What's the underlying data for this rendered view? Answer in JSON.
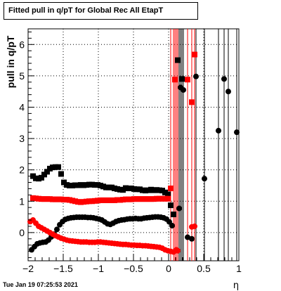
{
  "title": "Fitted pull in q/pT for Global Rec All EtapT",
  "timestamp": "Tue Jan 19 07:25:53 2021",
  "chart_data": {
    "type": "scatter",
    "xlabel": "η",
    "ylabel": "pull in q/pT",
    "xlim": [
      -2,
      1
    ],
    "ylim": [
      -0.9,
      6.5
    ],
    "grid": true,
    "x_ticks": [
      {
        "value": -2,
        "label": "−2"
      },
      {
        "value": -1.5,
        "label": "−1.5"
      },
      {
        "value": -1,
        "label": "−1"
      },
      {
        "value": -0.5,
        "label": "−0.5"
      },
      {
        "value": 0,
        "label": "0"
      },
      {
        "value": 0.5,
        "label": "0.5"
      },
      {
        "value": 1,
        "label": "1"
      }
    ],
    "y_ticks": [
      {
        "value": 0,
        "label": "0"
      },
      {
        "value": 1,
        "label": "1"
      },
      {
        "value": 2,
        "label": "2"
      },
      {
        "value": 3,
        "label": "3"
      },
      {
        "value": 4,
        "label": "4"
      },
      {
        "value": 5,
        "label": "5"
      },
      {
        "value": 6,
        "label": "6"
      }
    ],
    "series": [
      {
        "color": "#000000",
        "marker": "square",
        "points": [
          [
            -1.93,
            1.8
          ],
          [
            -1.89,
            1.73
          ],
          [
            -1.85,
            1.72
          ],
          [
            -1.81,
            1.75
          ],
          [
            -1.77,
            1.85
          ],
          [
            -1.73,
            1.94
          ],
          [
            -1.69,
            2.04
          ],
          [
            -1.65,
            2.08
          ],
          [
            -1.61,
            2.09
          ],
          [
            -1.57,
            2.09
          ],
          [
            -1.53,
            1.87
          ],
          [
            -1.49,
            1.6
          ],
          [
            -1.45,
            1.52
          ],
          [
            -1.41,
            1.5
          ],
          [
            -1.37,
            1.5
          ],
          [
            -1.33,
            1.51
          ],
          [
            -1.29,
            1.51
          ],
          [
            -1.25,
            1.52
          ],
          [
            -1.21,
            1.51
          ],
          [
            -1.17,
            1.52
          ],
          [
            -1.13,
            1.53
          ],
          [
            -1.09,
            1.53
          ],
          [
            -1.05,
            1.52
          ],
          [
            -1.01,
            1.52
          ],
          [
            -0.97,
            1.5
          ],
          [
            -0.93,
            1.47
          ],
          [
            -0.89,
            1.44
          ],
          [
            -0.85,
            1.44
          ],
          [
            -0.81,
            1.44
          ],
          [
            -0.77,
            1.41
          ],
          [
            -0.73,
            1.39
          ],
          [
            -0.69,
            1.37
          ],
          [
            -0.65,
            1.36
          ],
          [
            -0.61,
            1.42
          ],
          [
            -0.57,
            1.41
          ],
          [
            -0.53,
            1.41
          ],
          [
            -0.49,
            1.39
          ],
          [
            -0.45,
            1.38
          ],
          [
            -0.41,
            1.38
          ],
          [
            -0.37,
            1.35
          ],
          [
            -0.33,
            1.34
          ],
          [
            -0.29,
            1.35
          ],
          [
            -0.25,
            1.37
          ],
          [
            -0.21,
            1.35
          ],
          [
            -0.17,
            1.36
          ],
          [
            -0.13,
            1.35
          ],
          [
            -0.09,
            1.34
          ],
          [
            -0.05,
            1.28
          ],
          [
            -0.01,
            1.22
          ],
          [
            0.03,
            0.87
          ],
          [
            0.07,
            0.58
          ],
          [
            0.13,
            5.5
          ],
          [
            0.19,
            4.9
          ]
        ],
        "error_bars": [
          [
            0.03,
            -0.9,
            6.5
          ],
          [
            0.07,
            -0.9,
            6.5
          ],
          [
            0.13,
            -0.9,
            6.5
          ],
          [
            0.19,
            -0.9,
            6.5
          ]
        ]
      },
      {
        "color": "#ff0000",
        "marker": "square",
        "points": [
          [
            -1.93,
            1.1
          ],
          [
            -1.89,
            1.09
          ],
          [
            -1.85,
            1.08
          ],
          [
            -1.81,
            1.07
          ],
          [
            -1.77,
            1.07
          ],
          [
            -1.73,
            1.07
          ],
          [
            -1.69,
            1.07
          ],
          [
            -1.65,
            1.06
          ],
          [
            -1.61,
            1.06
          ],
          [
            -1.57,
            1.06
          ],
          [
            -1.53,
            1.06
          ],
          [
            -1.49,
            1.05
          ],
          [
            -1.45,
            1.05
          ],
          [
            -1.41,
            1.04
          ],
          [
            -1.37,
            1.02
          ],
          [
            -1.33,
            1.0
          ],
          [
            -1.29,
            0.98
          ],
          [
            -1.25,
            0.97
          ],
          [
            -1.21,
            0.98
          ],
          [
            -1.17,
            0.99
          ],
          [
            -1.13,
            1.0
          ],
          [
            -1.09,
            1.0
          ],
          [
            -1.05,
            1.01
          ],
          [
            -1.01,
            1.02
          ],
          [
            -0.97,
            1.03
          ],
          [
            -0.93,
            1.03
          ],
          [
            -0.89,
            1.03
          ],
          [
            -0.85,
            1.03
          ],
          [
            -0.81,
            1.03
          ],
          [
            -0.77,
            1.03
          ],
          [
            -0.73,
            1.04
          ],
          [
            -0.69,
            1.04
          ],
          [
            -0.65,
            1.05
          ],
          [
            -0.61,
            1.06
          ],
          [
            -0.57,
            1.06
          ],
          [
            -0.53,
            1.06
          ],
          [
            -0.49,
            1.07
          ],
          [
            -0.45,
            1.07
          ],
          [
            -0.41,
            1.07
          ],
          [
            -0.37,
            1.07
          ],
          [
            -0.33,
            1.07
          ],
          [
            -0.29,
            1.07
          ],
          [
            -0.25,
            1.07
          ],
          [
            -0.21,
            1.07
          ],
          [
            -0.17,
            1.08
          ],
          [
            -0.13,
            1.08
          ],
          [
            -0.09,
            1.08
          ],
          [
            -0.05,
            1.08
          ],
          [
            -0.01,
            1.08
          ],
          [
            0.03,
            1.41
          ],
          [
            0.09,
            4.88
          ],
          [
            0.27,
            4.88
          ],
          [
            0.33,
            4.16
          ],
          [
            0.37,
            5.68
          ]
        ],
        "error_bars": [
          [
            0.03,
            -0.9,
            6.5
          ],
          [
            0.09,
            -0.9,
            6.5
          ],
          [
            0.27,
            -0.9,
            6.5
          ],
          [
            0.33,
            -0.9,
            6.5
          ],
          [
            0.37,
            -0.9,
            6.5
          ]
        ]
      },
      {
        "color": "#000000",
        "marker": "circle",
        "points": [
          [
            -1.95,
            -0.55
          ],
          [
            -1.91,
            -0.45
          ],
          [
            -1.87,
            -0.36
          ],
          [
            -1.83,
            -0.33
          ],
          [
            -1.79,
            -0.31
          ],
          [
            -1.75,
            -0.3
          ],
          [
            -1.71,
            -0.24
          ],
          [
            -1.67,
            -0.14
          ],
          [
            -1.63,
            -0.05
          ],
          [
            -1.59,
            0.1
          ],
          [
            -1.55,
            0.25
          ],
          [
            -1.51,
            0.35
          ],
          [
            -1.47,
            0.42
          ],
          [
            -1.43,
            0.45
          ],
          [
            -1.39,
            0.47
          ],
          [
            -1.35,
            0.48
          ],
          [
            -1.31,
            0.49
          ],
          [
            -1.27,
            0.49
          ],
          [
            -1.23,
            0.49
          ],
          [
            -1.19,
            0.49
          ],
          [
            -1.15,
            0.48
          ],
          [
            -1.11,
            0.48
          ],
          [
            -1.07,
            0.47
          ],
          [
            -1.03,
            0.45
          ],
          [
            -0.99,
            0.43
          ],
          [
            -0.95,
            0.4
          ],
          [
            -0.91,
            0.34
          ],
          [
            -0.87,
            0.28
          ],
          [
            -0.83,
            0.26
          ],
          [
            -0.79,
            0.3
          ],
          [
            -0.75,
            0.35
          ],
          [
            -0.71,
            0.38
          ],
          [
            -0.67,
            0.4
          ],
          [
            -0.63,
            0.41
          ],
          [
            -0.59,
            0.43
          ],
          [
            -0.55,
            0.44
          ],
          [
            -0.51,
            0.44
          ],
          [
            -0.47,
            0.45
          ],
          [
            -0.43,
            0.44
          ],
          [
            -0.39,
            0.44
          ],
          [
            -0.35,
            0.46
          ],
          [
            -0.31,
            0.47
          ],
          [
            -0.27,
            0.48
          ],
          [
            -0.23,
            0.49
          ],
          [
            -0.19,
            0.5
          ],
          [
            -0.15,
            0.5
          ],
          [
            -0.11,
            0.49
          ],
          [
            -0.07,
            0.47
          ],
          [
            -0.03,
            0.43
          ],
          [
            0.01,
            0.34
          ],
          [
            0.05,
            0.22
          ],
          [
            0.15,
            0.77
          ],
          [
            0.17,
            4.63
          ],
          [
            0.21,
            4.55
          ],
          [
            0.27,
            -0.15
          ],
          [
            0.33,
            -0.2
          ],
          [
            0.39,
            4.98
          ],
          [
            0.51,
            1.72
          ],
          [
            0.71,
            3.25
          ],
          [
            0.79,
            4.9
          ],
          [
            0.85,
            4.5
          ],
          [
            0.97,
            3.2
          ]
        ],
        "error_bars": [
          [
            0.15,
            -0.9,
            6.5
          ],
          [
            0.17,
            -0.9,
            6.5
          ],
          [
            0.21,
            -0.9,
            6.5
          ],
          [
            0.39,
            -0.9,
            6.5
          ],
          [
            0.51,
            -0.9,
            6.5
          ],
          [
            0.71,
            -0.9,
            6.5
          ],
          [
            0.79,
            -0.9,
            6.5
          ],
          [
            0.85,
            -0.9,
            6.5
          ],
          [
            0.97,
            -0.9,
            6.5
          ]
        ]
      },
      {
        "color": "#ff0000",
        "marker": "circle",
        "points": [
          [
            -1.97,
            0.35
          ],
          [
            -1.93,
            0.4
          ],
          [
            -1.89,
            0.3
          ],
          [
            -1.85,
            0.2
          ],
          [
            -1.81,
            0.15
          ],
          [
            -1.77,
            0.1
          ],
          [
            -1.73,
            0.05
          ],
          [
            -1.69,
            0.0
          ],
          [
            -1.65,
            -0.05
          ],
          [
            -1.61,
            -0.1
          ],
          [
            -1.57,
            -0.14
          ],
          [
            -1.53,
            -0.18
          ],
          [
            -1.49,
            -0.21
          ],
          [
            -1.45,
            -0.24
          ],
          [
            -1.41,
            -0.26
          ],
          [
            -1.37,
            -0.27
          ],
          [
            -1.33,
            -0.28
          ],
          [
            -1.29,
            -0.29
          ],
          [
            -1.25,
            -0.3
          ],
          [
            -1.21,
            -0.3
          ],
          [
            -1.17,
            -0.3
          ],
          [
            -1.13,
            -0.31
          ],
          [
            -1.09,
            -0.31
          ],
          [
            -1.05,
            -0.31
          ],
          [
            -1.01,
            -0.3
          ],
          [
            -0.97,
            -0.3
          ],
          [
            -0.93,
            -0.31
          ],
          [
            -0.89,
            -0.32
          ],
          [
            -0.85,
            -0.33
          ],
          [
            -0.81,
            -0.34
          ],
          [
            -0.77,
            -0.35
          ],
          [
            -0.73,
            -0.36
          ],
          [
            -0.69,
            -0.37
          ],
          [
            -0.65,
            -0.38
          ],
          [
            -0.61,
            -0.38
          ],
          [
            -0.57,
            -0.39
          ],
          [
            -0.53,
            -0.4
          ],
          [
            -0.49,
            -0.4
          ],
          [
            -0.45,
            -0.41
          ],
          [
            -0.41,
            -0.41
          ],
          [
            -0.37,
            -0.42
          ],
          [
            -0.33,
            -0.42
          ],
          [
            -0.29,
            -0.43
          ],
          [
            -0.25,
            -0.44
          ],
          [
            -0.21,
            -0.45
          ],
          [
            -0.17,
            -0.46
          ],
          [
            -0.13,
            -0.47
          ],
          [
            -0.09,
            -0.5
          ],
          [
            -0.05,
            -0.55
          ],
          [
            -0.01,
            -0.58
          ],
          [
            0.03,
            -0.6
          ],
          [
            0.07,
            -0.62
          ],
          [
            0.11,
            -0.55
          ],
          [
            0.13,
            -0.58
          ],
          [
            0.33,
            0.18
          ],
          [
            0.37,
            0.2
          ]
        ],
        "error_bars": [
          [
            0.07,
            -0.9,
            6.5
          ],
          [
            0.11,
            -0.9,
            6.5
          ],
          [
            0.13,
            -0.9,
            6.5
          ],
          [
            0.33,
            -0.9,
            6.5
          ],
          [
            0.37,
            -0.9,
            6.5
          ]
        ]
      }
    ]
  }
}
